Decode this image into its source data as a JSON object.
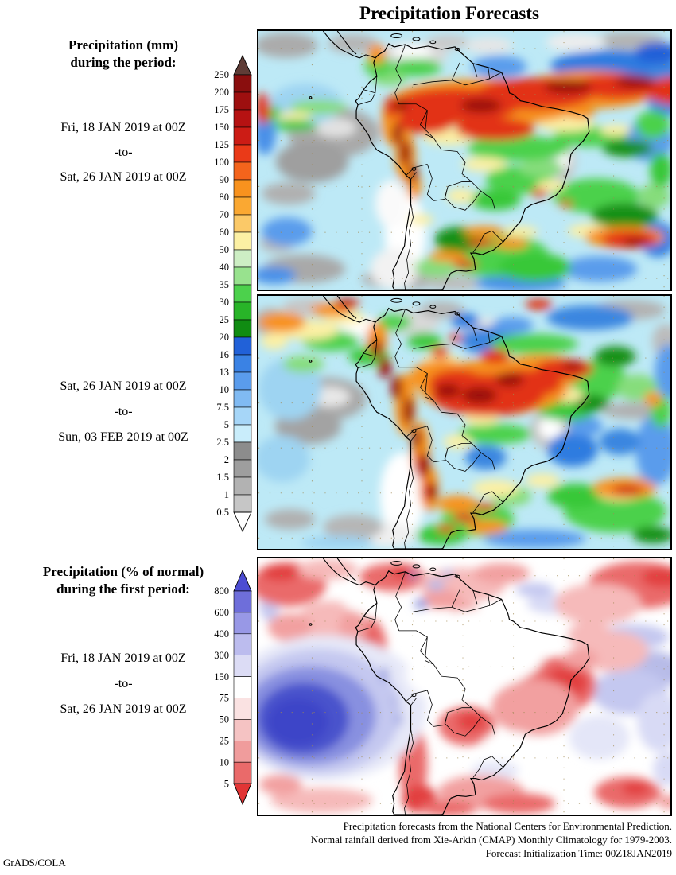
{
  "title": "Precipitation Forecasts",
  "credit": "GrADS/COLA",
  "sidebar": {
    "block1_header_line1": "Precipitation (mm)",
    "block1_header_line2": "during the period:",
    "period1_from": "Fri, 18 JAN 2019 at 00Z",
    "period1_sep": "-to-",
    "period1_to": "Sat, 26 JAN 2019 at 00Z",
    "period2_from": "Sat, 26 JAN 2019 at 00Z",
    "period2_sep": "-to-",
    "period2_to": "Sun, 03 FEB 2019 at 00Z",
    "block3_header_line1": "Precipitation (% of normal)",
    "block3_header_line2": "during the first period:",
    "period3_from": "Fri, 18 JAN 2019 at 00Z",
    "period3_sep": "-to-",
    "period3_to": "Sat, 26 JAN 2019 at 00Z"
  },
  "footer": {
    "line1": "Precipitation forecasts from the National Centers for Environmental Prediction.",
    "line2": "Normal rainfall derived from Xie-Arkin (CMAP) Monthly Climatology for 1979-2003.",
    "line3": "Forecast Initialization Time: 00Z18JAN2019"
  },
  "colorbar_mm": {
    "labels_top_to_bottom": [
      "250",
      "200",
      "175",
      "150",
      "125",
      "100",
      "90",
      "80",
      "70",
      "60",
      "50",
      "40",
      "35",
      "30",
      "25",
      "20",
      "16",
      "13",
      "10",
      "7.5",
      "5",
      "2.5",
      "2",
      "1.5",
      "1",
      "0.5"
    ],
    "segment_colors_top_to_bottom": [
      "#8a0e0e",
      "#9e0f0f",
      "#b61212",
      "#cc1c15",
      "#ea3a18",
      "#f4641c",
      "#f8921e",
      "#faa832",
      "#fbc968",
      "#fcf0a4",
      "#cdeec4",
      "#98e28e",
      "#4cd14c",
      "#28b428",
      "#108c12",
      "#2161d8",
      "#3a82e4",
      "#5a9cec",
      "#80baf2",
      "#a6d6f8",
      "#c9edfb",
      "#8c8c8c",
      "#9e9e9e",
      "#b2b2b2",
      "#c6c6c6"
    ],
    "arrow_top_color": "#5f3c36",
    "arrow_bottom_color": "#ffffff"
  },
  "colorbar_pct": {
    "labels_top_to_bottom": [
      "800",
      "600",
      "400",
      "300",
      "150",
      "75",
      "50",
      "25",
      "10",
      "5"
    ],
    "segment_colors_top_to_bottom": [
      "#6e6eda",
      "#9898e6",
      "#bcbcee",
      "#dcdcf5",
      "#ffffff",
      "#fae2e2",
      "#f5c3c3",
      "#f09c9c",
      "#ea6a6a"
    ],
    "arrow_top_color": "#4c4cd2",
    "arrow_bottom_color": "#e23434"
  },
  "chart_data": [
    {
      "type": "heatmap",
      "panel": 1,
      "title": "Precipitation (mm) during the period",
      "variable": "total precipitation",
      "units": "mm",
      "region": "South America",
      "period_from": "Fri, 18 JAN 2019 at 00Z",
      "period_to": "Sat, 26 JAN 2019 at 00Z",
      "levels": [
        0.5,
        1,
        1.5,
        2,
        2.5,
        5,
        7.5,
        10,
        13,
        16,
        20,
        25,
        30,
        35,
        40,
        50,
        60,
        70,
        80,
        90,
        100,
        125,
        150,
        175,
        200,
        250
      ],
      "palette_low_to_high": [
        "#ffffff",
        "#c6c6c6",
        "#b2b2b2",
        "#9e9e9e",
        "#8c8c8c",
        "#c9edfb",
        "#a6d6f8",
        "#80baf2",
        "#5a9cec",
        "#3a82e4",
        "#2161d8",
        "#108c12",
        "#28b428",
        "#4cd14c",
        "#98e28e",
        "#cdeec4",
        "#fcf0a4",
        "#fbc968",
        "#faa832",
        "#f8921e",
        "#f4641c",
        "#ea3a18",
        "#cc1c15",
        "#b61212",
        "#9e0f0f",
        "#8a0e0e",
        "#5f3c36"
      ],
      "legend_position": "left",
      "notes": "Filled-contour forecast map: heavy rain (100-250+ mm, reds) across the Amazon basin and NE Brazil into the Atlantic ITCZ; greens 20-50 mm over SE Brazil and mid-latitudes; greys <2.5 mm over SE Pacific and dry zones; white strip along Chilean coast."
    },
    {
      "type": "heatmap",
      "panel": 2,
      "title": "Precipitation (mm) during the period",
      "variable": "total precipitation",
      "units": "mm",
      "region": "South America",
      "period_from": "Sat, 26 JAN 2019 at 00Z",
      "period_to": "Sun, 03 FEB 2019 at 00Z",
      "levels": [
        0.5,
        1,
        1.5,
        2,
        2.5,
        5,
        7.5,
        10,
        13,
        16,
        20,
        25,
        30,
        35,
        40,
        50,
        60,
        70,
        80,
        90,
        100,
        125,
        150,
        175,
        200,
        250
      ],
      "palette_low_to_high": [
        "#ffffff",
        "#c6c6c6",
        "#b2b2b2",
        "#9e9e9e",
        "#8c8c8c",
        "#c9edfb",
        "#a6d6f8",
        "#80baf2",
        "#5a9cec",
        "#3a82e4",
        "#2161d8",
        "#108c12",
        "#28b428",
        "#4cd14c",
        "#98e28e",
        "#cdeec4",
        "#fcf0a4",
        "#fbc968",
        "#faa832",
        "#f8921e",
        "#f4641c",
        "#ea3a18",
        "#cc1c15",
        "#b61212",
        "#9e0f0f",
        "#8a0e0e",
        "#5f3c36"
      ],
      "legend_position": "left",
      "notes": "Second-period forecast: broad 100-250 mm (red/orange) core over central Amazonia and along the Andes chain; dark-red maxima along Peru/Bolivia Andes; greens/blues elsewhere; grey dry zones over SE Pacific."
    },
    {
      "type": "heatmap",
      "panel": 3,
      "title": "Precipitation (% of normal) during the first period",
      "variable": "precipitation percent of normal",
      "units": "% of normal",
      "region": "South America",
      "period_from": "Fri, 18 JAN 2019 at 00Z",
      "period_to": "Sat, 26 JAN 2019 at 00Z",
      "levels": [
        5,
        10,
        25,
        50,
        75,
        150,
        300,
        400,
        600,
        800
      ],
      "palette_low_to_high": [
        "#e23434",
        "#ea6a6a",
        "#f09c9c",
        "#f5c3c3",
        "#fae2e2",
        "#ffffff",
        "#dcdcf5",
        "#bcbcee",
        "#9898e6",
        "#6e6eda",
        "#4c4cd2"
      ],
      "legend_position": "left",
      "notes": "Anomaly map: reds (below normal) over eastern Brazil, Paraguay, Chilean coast and tropical Atlantic/Pacific bands; strong blue (>800% of normal) maximum over the SE Pacific west of Chile; near-normal white over Amazonia."
    }
  ]
}
